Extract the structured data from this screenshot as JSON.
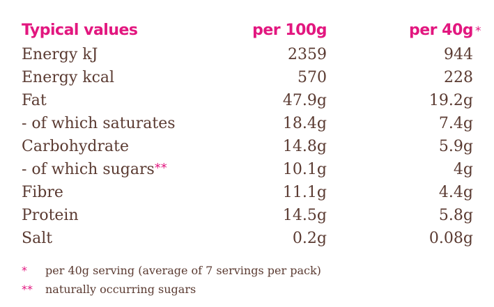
{
  "table": {
    "headers": {
      "label": "Typical values",
      "per100": "per 100g",
      "per40": "per 40g",
      "per40_mark": "*"
    },
    "rows": [
      {
        "label": "Energy kJ",
        "per100": "2359",
        "per40": "944"
      },
      {
        "label": "Energy kcal",
        "per100": "570",
        "per40": "228"
      },
      {
        "label": "Fat",
        "per100": "47.9g",
        "per40": "19.2g"
      },
      {
        "label": "- of which saturates",
        "per100": "18.4g",
        "per40": "7.4g"
      },
      {
        "label": "Carbohydrate",
        "per100": "14.8g",
        "per40": "5.9g"
      },
      {
        "label": "- of which sugars",
        "mark": "**",
        "per100": "10.1g",
        "per40": "4g"
      },
      {
        "label": "Fibre",
        "per100": "11.1g",
        "per40": "4.4g"
      },
      {
        "label": "Protein",
        "per100": "14.5g",
        "per40": "5.8g"
      },
      {
        "label": "Salt",
        "per100": "0.2g",
        "per40": "0.08g"
      }
    ]
  },
  "footnotes": [
    {
      "mark": "*",
      "text": "per 40g serving (average of 7 servings per pack)"
    },
    {
      "mark": "**",
      "text": "naturally occurring sugars"
    }
  ],
  "colors": {
    "accent": "#e2177f",
    "text": "#5a3a31",
    "background": "#ffffff"
  }
}
